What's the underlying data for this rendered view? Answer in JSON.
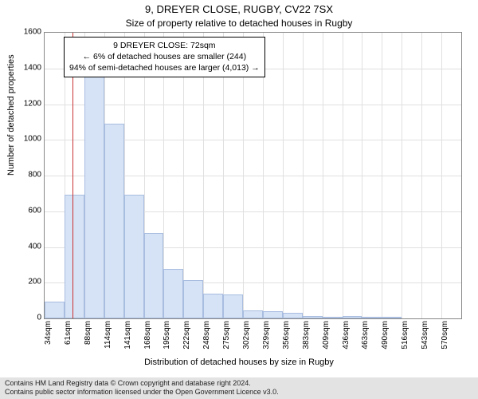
{
  "title_main": "9, DREYER CLOSE, RUGBY, CV22 7SX",
  "title_sub": "Size of property relative to detached houses in Rugby",
  "ylabel": "Number of detached properties",
  "xlabel": "Distribution of detached houses by size in Rugby",
  "chart": {
    "type": "histogram",
    "background_color": "#ffffff",
    "axis_color": "#888888",
    "grid_color": "#e0e0e0",
    "bar_fill": "#d6e2f5",
    "bar_border": "#a8bde0",
    "ref_line_color": "#cc3333",
    "ylim": [
      0,
      1600
    ],
    "ytick_step": 200,
    "x_start": 34,
    "x_step": 26.8,
    "x_unit": "sqm",
    "x_count": 21,
    "values": [
      95,
      695,
      1390,
      1090,
      695,
      480,
      275,
      215,
      140,
      135,
      45,
      40,
      30,
      15,
      5,
      15,
      5,
      5,
      0,
      0,
      0
    ],
    "xtick_labels": [
      "34sqm",
      "61sqm",
      "88sqm",
      "114sqm",
      "141sqm",
      "168sqm",
      "195sqm",
      "222sqm",
      "248sqm",
      "275sqm",
      "302sqm",
      "329sqm",
      "356sqm",
      "383sqm",
      "409sqm",
      "436sqm",
      "463sqm",
      "490sqm",
      "516sqm",
      "543sqm",
      "570sqm"
    ],
    "reference_value": 72,
    "annotation": {
      "line1": "9 DREYER CLOSE: 72sqm",
      "line2": "← 6% of detached houses are smaller (244)",
      "line3": "94% of semi-detached houses are larger (4,013) →"
    },
    "title_fontsize": 13,
    "subtitle_fontsize": 12,
    "label_fontsize": 11,
    "tick_fontsize": 10,
    "annot_fontsize": 10.5
  },
  "footer": {
    "line1": "Contains HM Land Registry data © Crown copyright and database right 2024.",
    "line2": "Contains public sector information licensed under the Open Government Licence v3.0."
  }
}
